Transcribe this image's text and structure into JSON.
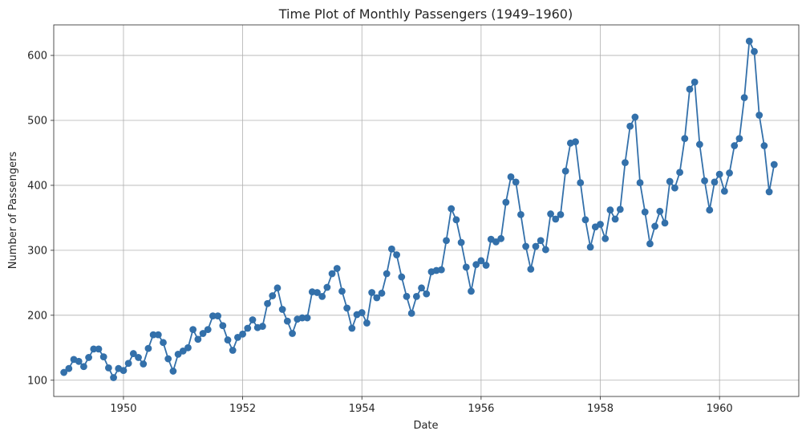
{
  "chart_data": {
    "type": "line",
    "title": "Time Plot of Monthly Passengers (1949–1960)",
    "xlabel": "Date",
    "ylabel": "Number of Passengers",
    "x_start_year": 1949,
    "x_frequency": "monthly",
    "xlim": [
      1948.83,
      1961.33
    ],
    "ylim": [
      75,
      647
    ],
    "xticks": [
      1950,
      1952,
      1954,
      1956,
      1958,
      1960
    ],
    "yticks": [
      100,
      200,
      300,
      400,
      500,
      600
    ],
    "grid": true,
    "marker": "circle",
    "series": [
      {
        "color": "#3370aa",
        "values": [
          112,
          118,
          132,
          129,
          121,
          135,
          148,
          148,
          136,
          119,
          104,
          118,
          115,
          126,
          141,
          135,
          125,
          149,
          170,
          170,
          158,
          133,
          114,
          140,
          145,
          150,
          178,
          163,
          172,
          178,
          199,
          199,
          184,
          162,
          146,
          166,
          171,
          180,
          193,
          181,
          183,
          218,
          230,
          242,
          209,
          191,
          172,
          194,
          196,
          196,
          236,
          235,
          229,
          243,
          264,
          272,
          237,
          211,
          180,
          201,
          204,
          188,
          235,
          227,
          234,
          264,
          302,
          293,
          259,
          229,
          203,
          229,
          242,
          233,
          267,
          269,
          270,
          315,
          364,
          347,
          312,
          274,
          237,
          278,
          284,
          277,
          317,
          313,
          318,
          374,
          413,
          405,
          355,
          306,
          271,
          306,
          315,
          301,
          356,
          348,
          355,
          422,
          465,
          467,
          404,
          347,
          305,
          336,
          340,
          318,
          362,
          348,
          363,
          435,
          491,
          505,
          404,
          359,
          310,
          337,
          360,
          342,
          406,
          396,
          420,
          472,
          548,
          559,
          463,
          407,
          362,
          405,
          417,
          391,
          419,
          461,
          472,
          535,
          622,
          606,
          508,
          461,
          390,
          432
        ]
      }
    ]
  }
}
